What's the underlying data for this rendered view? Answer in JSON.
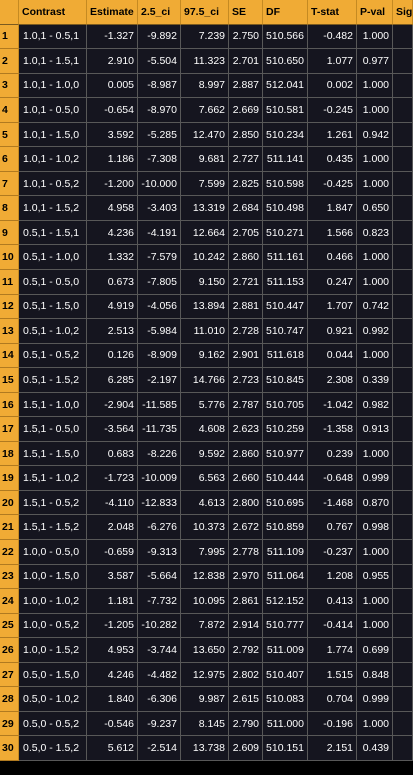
{
  "columns": [
    "Contrast",
    "Estimate",
    "2.5_ci",
    "97.5_ci",
    "SE",
    "DF",
    "T-stat",
    "P-val",
    "Sig"
  ],
  "rows": [
    {
      "index": "1",
      "contrast": "1.0,1 - 0.5,1",
      "estimate": "-1.327",
      "ci_low": "-9.892",
      "ci_high": "7.239",
      "se": "2.750",
      "df": "510.566",
      "t_stat": "-0.482",
      "p_val": "1.000",
      "sig": ""
    },
    {
      "index": "2",
      "contrast": "1.0,1 - 1.5,1",
      "estimate": "2.910",
      "ci_low": "-5.504",
      "ci_high": "11.323",
      "se": "2.701",
      "df": "510.650",
      "t_stat": "1.077",
      "p_val": "0.977",
      "sig": ""
    },
    {
      "index": "3",
      "contrast": "1.0,1 - 1.0,0",
      "estimate": "0.005",
      "ci_low": "-8.987",
      "ci_high": "8.997",
      "se": "2.887",
      "df": "512.041",
      "t_stat": "0.002",
      "p_val": "1.000",
      "sig": ""
    },
    {
      "index": "4",
      "contrast": "1.0,1 - 0.5,0",
      "estimate": "-0.654",
      "ci_low": "-8.970",
      "ci_high": "7.662",
      "se": "2.669",
      "df": "510.581",
      "t_stat": "-0.245",
      "p_val": "1.000",
      "sig": ""
    },
    {
      "index": "5",
      "contrast": "1.0,1 - 1.5,0",
      "estimate": "3.592",
      "ci_low": "-5.285",
      "ci_high": "12.470",
      "se": "2.850",
      "df": "510.234",
      "t_stat": "1.261",
      "p_val": "0.942",
      "sig": ""
    },
    {
      "index": "6",
      "contrast": "1.0,1 - 1.0,2",
      "estimate": "1.186",
      "ci_low": "-7.308",
      "ci_high": "9.681",
      "se": "2.727",
      "df": "511.141",
      "t_stat": "0.435",
      "p_val": "1.000",
      "sig": ""
    },
    {
      "index": "7",
      "contrast": "1.0,1 - 0.5,2",
      "estimate": "-1.200",
      "ci_low": "-10.000",
      "ci_high": "7.599",
      "se": "2.825",
      "df": "510.598",
      "t_stat": "-0.425",
      "p_val": "1.000",
      "sig": ""
    },
    {
      "index": "8",
      "contrast": "1.0,1 - 1.5,2",
      "estimate": "4.958",
      "ci_low": "-3.403",
      "ci_high": "13.319",
      "se": "2.684",
      "df": "510.498",
      "t_stat": "1.847",
      "p_val": "0.650",
      "sig": ""
    },
    {
      "index": "9",
      "contrast": "0.5,1 - 1.5,1",
      "estimate": "4.236",
      "ci_low": "-4.191",
      "ci_high": "12.664",
      "se": "2.705",
      "df": "510.271",
      "t_stat": "1.566",
      "p_val": "0.823",
      "sig": ""
    },
    {
      "index": "10",
      "contrast": "0.5,1 - 1.0,0",
      "estimate": "1.332",
      "ci_low": "-7.579",
      "ci_high": "10.242",
      "se": "2.860",
      "df": "511.161",
      "t_stat": "0.466",
      "p_val": "1.000",
      "sig": ""
    },
    {
      "index": "11",
      "contrast": "0.5,1 - 0.5,0",
      "estimate": "0.673",
      "ci_low": "-7.805",
      "ci_high": "9.150",
      "se": "2.721",
      "df": "511.153",
      "t_stat": "0.247",
      "p_val": "1.000",
      "sig": ""
    },
    {
      "index": "12",
      "contrast": "0.5,1 - 1.5,0",
      "estimate": "4.919",
      "ci_low": "-4.056",
      "ci_high": "13.894",
      "se": "2.881",
      "df": "510.447",
      "t_stat": "1.707",
      "p_val": "0.742",
      "sig": ""
    },
    {
      "index": "13",
      "contrast": "0.5,1 - 1.0,2",
      "estimate": "2.513",
      "ci_low": "-5.984",
      "ci_high": "11.010",
      "se": "2.728",
      "df": "510.747",
      "t_stat": "0.921",
      "p_val": "0.992",
      "sig": ""
    },
    {
      "index": "14",
      "contrast": "0.5,1 - 0.5,2",
      "estimate": "0.126",
      "ci_low": "-8.909",
      "ci_high": "9.162",
      "se": "2.901",
      "df": "511.618",
      "t_stat": "0.044",
      "p_val": "1.000",
      "sig": ""
    },
    {
      "index": "15",
      "contrast": "0.5,1 - 1.5,2",
      "estimate": "6.285",
      "ci_low": "-2.197",
      "ci_high": "14.766",
      "se": "2.723",
      "df": "510.845",
      "t_stat": "2.308",
      "p_val": "0.339",
      "sig": ""
    },
    {
      "index": "16",
      "contrast": "1.5,1 - 1.0,0",
      "estimate": "-2.904",
      "ci_low": "-11.585",
      "ci_high": "5.776",
      "se": "2.787",
      "df": "510.705",
      "t_stat": "-1.042",
      "p_val": "0.982",
      "sig": ""
    },
    {
      "index": "17",
      "contrast": "1.5,1 - 0.5,0",
      "estimate": "-3.564",
      "ci_low": "-11.735",
      "ci_high": "4.608",
      "se": "2.623",
      "df": "510.259",
      "t_stat": "-1.358",
      "p_val": "0.913",
      "sig": ""
    },
    {
      "index": "18",
      "contrast": "1.5,1 - 1.5,0",
      "estimate": "0.683",
      "ci_low": "-8.226",
      "ci_high": "9.592",
      "se": "2.860",
      "df": "510.977",
      "t_stat": "0.239",
      "p_val": "1.000",
      "sig": ""
    },
    {
      "index": "19",
      "contrast": "1.5,1 - 1.0,2",
      "estimate": "-1.723",
      "ci_low": "-10.009",
      "ci_high": "6.563",
      "se": "2.660",
      "df": "510.444",
      "t_stat": "-0.648",
      "p_val": "0.999",
      "sig": ""
    },
    {
      "index": "20",
      "contrast": "1.5,1 - 0.5,2",
      "estimate": "-4.110",
      "ci_low": "-12.833",
      "ci_high": "4.613",
      "se": "2.800",
      "df": "510.695",
      "t_stat": "-1.468",
      "p_val": "0.870",
      "sig": ""
    },
    {
      "index": "21",
      "contrast": "1.5,1 - 1.5,2",
      "estimate": "2.048",
      "ci_low": "-6.276",
      "ci_high": "10.373",
      "se": "2.672",
      "df": "510.859",
      "t_stat": "0.767",
      "p_val": "0.998",
      "sig": ""
    },
    {
      "index": "22",
      "contrast": "1.0,0 - 0.5,0",
      "estimate": "-0.659",
      "ci_low": "-9.313",
      "ci_high": "7.995",
      "se": "2.778",
      "df": "511.109",
      "t_stat": "-0.237",
      "p_val": "1.000",
      "sig": ""
    },
    {
      "index": "23",
      "contrast": "1.0,0 - 1.5,0",
      "estimate": "3.587",
      "ci_low": "-5.664",
      "ci_high": "12.838",
      "se": "2.970",
      "df": "511.064",
      "t_stat": "1.208",
      "p_val": "0.955",
      "sig": ""
    },
    {
      "index": "24",
      "contrast": "1.0,0 - 1.0,2",
      "estimate": "1.181",
      "ci_low": "-7.732",
      "ci_high": "10.095",
      "se": "2.861",
      "df": "512.152",
      "t_stat": "0.413",
      "p_val": "1.000",
      "sig": ""
    },
    {
      "index": "25",
      "contrast": "1.0,0 - 0.5,2",
      "estimate": "-1.205",
      "ci_low": "-10.282",
      "ci_high": "7.872",
      "se": "2.914",
      "df": "510.777",
      "t_stat": "-0.414",
      "p_val": "1.000",
      "sig": ""
    },
    {
      "index": "26",
      "contrast": "1.0,0 - 1.5,2",
      "estimate": "4.953",
      "ci_low": "-3.744",
      "ci_high": "13.650",
      "se": "2.792",
      "df": "511.009",
      "t_stat": "1.774",
      "p_val": "0.699",
      "sig": ""
    },
    {
      "index": "27",
      "contrast": "0.5,0 - 1.5,0",
      "estimate": "4.246",
      "ci_low": "-4.482",
      "ci_high": "12.975",
      "se": "2.802",
      "df": "510.407",
      "t_stat": "1.515",
      "p_val": "0.848",
      "sig": ""
    },
    {
      "index": "28",
      "contrast": "0.5,0 - 1.0,2",
      "estimate": "1.840",
      "ci_low": "-6.306",
      "ci_high": "9.987",
      "se": "2.615",
      "df": "510.083",
      "t_stat": "0.704",
      "p_val": "0.999",
      "sig": ""
    },
    {
      "index": "29",
      "contrast": "0.5,0 - 0.5,2",
      "estimate": "-0.546",
      "ci_low": "-9.237",
      "ci_high": "8.145",
      "se": "2.790",
      "df": "511.000",
      "t_stat": "-0.196",
      "p_val": "1.000",
      "sig": ""
    },
    {
      "index": "30",
      "contrast": "0.5,0 - 1.5,2",
      "estimate": "5.612",
      "ci_low": "-2.514",
      "ci_high": "13.738",
      "se": "2.609",
      "df": "510.151",
      "t_stat": "2.151",
      "p_val": "0.439",
      "sig": ""
    }
  ],
  "colors": {
    "header_bg": "#f0ab35",
    "cell_bg": "#15151f",
    "grid_line": "#585858",
    "text": "#ffffff"
  }
}
